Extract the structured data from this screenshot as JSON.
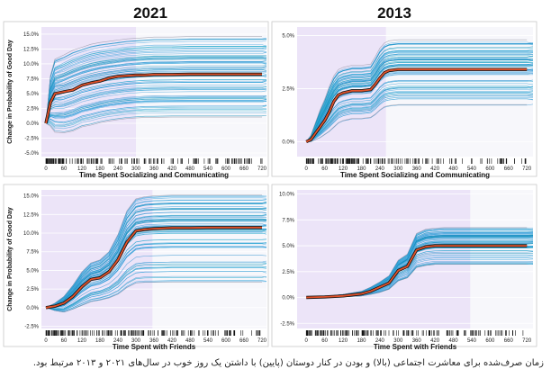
{
  "columns": [
    "2021",
    "2013"
  ],
  "caption": "زمان صرف‌شده برای معاشرت اجتماعی (بالا) و بودن در کنار دوستان (پایین) با داشتن یک روز خوب در سال‌های ۲۰۲۱ و ۲۰۱۳ مرتبط بود.",
  "colors": {
    "background_band": "#ece4f8",
    "ice_lines": [
      "#1f9bd6",
      "#2b8fd0",
      "#17a5c8",
      "#3aa0de",
      "#128fb7",
      "#4aa6d9"
    ],
    "mean_line": "#e2522b",
    "mean_outline": "#111111"
  },
  "chart_data": [
    {
      "type": "line",
      "panel": "top-left",
      "title": "2021",
      "xlabel": "Time Spent Socializing and Communicating",
      "ylabel": "Change in Probability of Good Day",
      "xticks": [
        0,
        60,
        120,
        180,
        240,
        300,
        360,
        420,
        480,
        540,
        600,
        660,
        720
      ],
      "yticks": [
        "-5.0%",
        "-2.5%",
        "0.0%",
        "2.5%",
        "5.0%",
        "7.5%",
        "10.0%",
        "12.5%",
        "15.0%"
      ],
      "xlim": [
        -15,
        735
      ],
      "ylim": [
        -5.6,
        16.2
      ],
      "band": [
        -15,
        300
      ],
      "series": [
        {
          "x": [
            0,
            15,
            30,
            60,
            90,
            120,
            150,
            180,
            210,
            240,
            270,
            300,
            330,
            360,
            420,
            480,
            540,
            600,
            660,
            720
          ],
          "values": [
            0,
            3.5,
            5.0,
            5.3,
            5.6,
            6.4,
            6.8,
            7.1,
            7.6,
            7.9,
            8.0,
            8.1,
            8.1,
            8.2,
            8.2,
            8.25,
            8.25,
            8.25,
            8.25,
            8.25
          ]
        }
      ],
      "ice_upper": [
        0,
        8.0,
        10.8,
        11.5,
        12.3,
        12.8,
        13.3,
        13.6,
        13.8,
        14.0,
        14.2,
        14.3,
        14.4,
        14.5,
        14.5,
        14.6,
        14.6,
        14.6,
        14.6,
        14.6
      ],
      "ice_lower": [
        0,
        -0.5,
        -1.5,
        -1.6,
        -1.3,
        -0.6,
        -0.3,
        0.1,
        0.4,
        0.6,
        0.8,
        0.9,
        1.0,
        1.0,
        1.05,
        1.05,
        1.05,
        1.05,
        1.05,
        1.05
      ]
    },
    {
      "type": "line",
      "panel": "top-right",
      "title": "2013",
      "xlabel": "Time Spent Socializing and Communicating",
      "ylabel": "",
      "xticks": [
        0,
        60,
        120,
        180,
        240,
        300,
        360,
        420,
        480,
        540,
        600,
        660,
        720
      ],
      "yticks": [
        "0.0%",
        "2.5%",
        "5.0%"
      ],
      "xlim": [
        -30,
        740
      ],
      "ylim": [
        -0.7,
        5.4
      ],
      "band": [
        -30,
        260
      ],
      "series": [
        {
          "x": [
            0,
            15,
            30,
            45,
            60,
            75,
            90,
            105,
            120,
            135,
            150,
            180,
            210,
            225,
            240,
            255,
            270,
            300,
            330,
            360,
            420,
            480,
            540,
            600,
            660,
            720
          ],
          "values": [
            0,
            0.1,
            0.4,
            0.7,
            1.0,
            1.4,
            1.9,
            2.2,
            2.3,
            2.35,
            2.4,
            2.4,
            2.45,
            2.7,
            3.0,
            3.25,
            3.35,
            3.4,
            3.4,
            3.4,
            3.4,
            3.4,
            3.4,
            3.4,
            3.4,
            3.4
          ]
        }
      ],
      "ice_upper": [
        0,
        0.3,
        0.9,
        1.5,
        2.0,
        2.6,
        3.1,
        3.4,
        3.5,
        3.55,
        3.6,
        3.6,
        3.65,
        4.0,
        4.4,
        4.65,
        4.75,
        4.8,
        4.8,
        4.8,
        4.8,
        4.8,
        4.8,
        4.8,
        4.8,
        4.8
      ],
      "ice_lower": [
        0,
        0.0,
        0.1,
        0.2,
        0.35,
        0.5,
        0.7,
        0.9,
        1.0,
        1.05,
        1.1,
        1.1,
        1.15,
        1.3,
        1.5,
        1.65,
        1.7,
        1.75,
        1.75,
        1.75,
        1.75,
        1.75,
        1.75,
        1.75,
        1.75,
        1.75
      ]
    },
    {
      "type": "line",
      "panel": "bottom-left",
      "title": "",
      "xlabel": "Time Spent with Friends",
      "ylabel": "Change in Probability of Good Day",
      "xticks": [
        0,
        60,
        120,
        180,
        240,
        300,
        360,
        420,
        480,
        540,
        600,
        660,
        720
      ],
      "yticks": [
        "-2.5%",
        "0.0%",
        "2.5%",
        "5.0%",
        "7.5%",
        "10.0%",
        "12.5%",
        "15.0%"
      ],
      "xlim": [
        -15,
        735
      ],
      "ylim": [
        -2.8,
        15.8
      ],
      "band": [
        -15,
        355
      ],
      "series": [
        {
          "x": [
            0,
            30,
            60,
            90,
            120,
            150,
            180,
            210,
            240,
            270,
            300,
            330,
            360,
            420,
            480,
            540,
            600,
            660,
            720
          ],
          "values": [
            0,
            0.2,
            0.6,
            1.5,
            2.8,
            3.8,
            4.0,
            4.8,
            6.4,
            8.8,
            10.3,
            10.5,
            10.6,
            10.7,
            10.7,
            10.75,
            10.75,
            10.75,
            10.75
          ]
        }
      ],
      "ice_upper": [
        0,
        0.6,
        1.5,
        3.0,
        4.8,
        6.0,
        6.4,
        7.5,
        9.8,
        13.0,
        14.6,
        14.9,
        15.0,
        15.1,
        15.1,
        15.1,
        15.1,
        15.1,
        15.1
      ],
      "ice_lower": [
        0,
        -0.4,
        -0.6,
        -0.2,
        0.3,
        0.8,
        1.0,
        1.3,
        1.8,
        2.7,
        3.3,
        3.4,
        3.4,
        3.45,
        3.45,
        3.45,
        3.45,
        3.45,
        3.45
      ]
    },
    {
      "type": "line",
      "panel": "bottom-right",
      "title": "",
      "xlabel": "Time Spent with Friends",
      "ylabel": "",
      "xticks": [
        0,
        60,
        120,
        180,
        240,
        300,
        360,
        420,
        480,
        540,
        600,
        660,
        720
      ],
      "yticks": [
        "-2.5%",
        "0.0%",
        "2.5%",
        "5.0%",
        "7.5%",
        "10.0%"
      ],
      "xlim": [
        -30,
        740
      ],
      "ylim": [
        -3.0,
        10.4
      ],
      "band": [
        -30,
        535
      ],
      "series": [
        {
          "x": [
            0,
            60,
            120,
            180,
            210,
            240,
            270,
            300,
            330,
            360,
            390,
            420,
            450,
            480,
            540,
            600,
            660,
            720
          ],
          "values": [
            0,
            0.05,
            0.15,
            0.35,
            0.6,
            1.0,
            1.4,
            2.6,
            3.0,
            4.6,
            4.9,
            5.0,
            5.0,
            5.0,
            5.0,
            5.0,
            5.0,
            5.0
          ]
        }
      ],
      "ice_upper": [
        0,
        0.1,
        0.3,
        0.6,
        1.0,
        1.5,
        2.1,
        3.6,
        4.2,
        6.2,
        6.6,
        6.7,
        6.75,
        6.75,
        6.75,
        6.75,
        6.75,
        6.75
      ],
      "ice_lower": [
        0,
        0.0,
        0.05,
        0.15,
        0.3,
        0.5,
        0.8,
        1.6,
        1.9,
        2.9,
        3.1,
        3.2,
        3.2,
        3.2,
        3.2,
        3.2,
        3.2,
        3.2
      ]
    }
  ]
}
